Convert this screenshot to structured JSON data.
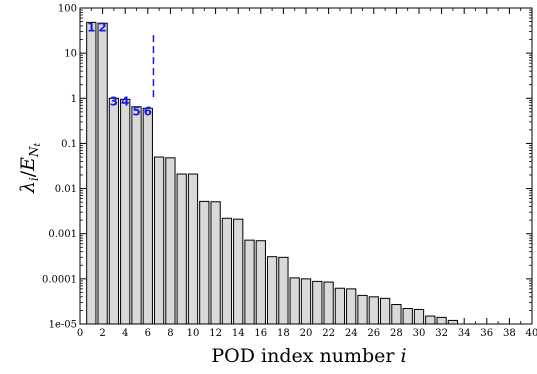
{
  "chart_data": {
    "type": "bar",
    "xlabel": "POD index number",
    "xlabel_var": "i",
    "ylabel_main": "λ",
    "ylabel_sub_i": "i",
    "ylabel_slash": "/",
    "ylabel_denom": "E",
    "ylabel_denom_sub": "N",
    "ylabel_denom_subsub": "t",
    "yscale": "log",
    "ylim": [
      1e-05,
      100
    ],
    "xlim": [
      0,
      40
    ],
    "y_ticks": [
      {
        "value": 100,
        "label": "100"
      },
      {
        "value": 10,
        "label": "10"
      },
      {
        "value": 1,
        "label": "1"
      },
      {
        "value": 0.1,
        "label": "0.1"
      },
      {
        "value": 0.01,
        "label": "0.01"
      },
      {
        "value": 0.001,
        "label": "0.001"
      },
      {
        "value": 0.0001,
        "label": "0.0001"
      },
      {
        "value": 1e-05,
        "label": "1e-05"
      }
    ],
    "x_ticks": [
      {
        "value": 0,
        "label": "0"
      },
      {
        "value": 2,
        "label": "2"
      },
      {
        "value": 4,
        "label": "4"
      },
      {
        "value": 6,
        "label": "6"
      },
      {
        "value": 8,
        "label": "8"
      },
      {
        "value": 10,
        "label": "10"
      },
      {
        "value": 12,
        "label": "12"
      },
      {
        "value": 14,
        "label": "14"
      },
      {
        "value": 16,
        "label": "16"
      },
      {
        "value": 18,
        "label": "18"
      },
      {
        "value": 20,
        "label": "20"
      },
      {
        "value": 22,
        "label": "22"
      },
      {
        "value": 24,
        "label": "24"
      },
      {
        "value": 26,
        "label": "26"
      },
      {
        "value": 28,
        "label": "28"
      },
      {
        "value": 30,
        "label": "30"
      },
      {
        "value": 32,
        "label": "32"
      },
      {
        "value": 34,
        "label": "34"
      },
      {
        "value": 36,
        "label": "36"
      },
      {
        "value": 38,
        "label": "38"
      },
      {
        "value": 40,
        "label": "40"
      }
    ],
    "bars": [
      {
        "x": 1,
        "value": 48
      },
      {
        "x": 2,
        "value": 46
      },
      {
        "x": 3,
        "value": 1.0
      },
      {
        "x": 4,
        "value": 0.95
      },
      {
        "x": 5,
        "value": 0.65
      },
      {
        "x": 6,
        "value": 0.6
      },
      {
        "x": 7,
        "value": 0.05
      },
      {
        "x": 8,
        "value": 0.048
      },
      {
        "x": 9,
        "value": 0.021
      },
      {
        "x": 10,
        "value": 0.021
      },
      {
        "x": 11,
        "value": 0.0052
      },
      {
        "x": 12,
        "value": 0.0051
      },
      {
        "x": 13,
        "value": 0.0022
      },
      {
        "x": 14,
        "value": 0.0021
      },
      {
        "x": 15,
        "value": 0.00072
      },
      {
        "x": 16,
        "value": 0.0007
      },
      {
        "x": 17,
        "value": 0.00031
      },
      {
        "x": 18,
        "value": 0.0003
      },
      {
        "x": 19,
        "value": 0.000105
      },
      {
        "x": 20,
        "value": 0.0001
      },
      {
        "x": 21,
        "value": 8.8e-05
      },
      {
        "x": 22,
        "value": 8.5e-05
      },
      {
        "x": 23,
        "value": 6.2e-05
      },
      {
        "x": 24,
        "value": 6e-05
      },
      {
        "x": 25,
        "value": 4.3e-05
      },
      {
        "x": 26,
        "value": 4e-05
      },
      {
        "x": 27,
        "value": 3.7e-05
      },
      {
        "x": 28,
        "value": 2.7e-05
      },
      {
        "x": 29,
        "value": 2.2e-05
      },
      {
        "x": 30,
        "value": 2.1e-05
      },
      {
        "x": 31,
        "value": 1.5e-05
      },
      {
        "x": 32,
        "value": 1.4e-05
      },
      {
        "x": 33,
        "value": 1.2e-05
      }
    ],
    "bar_color": "#d9d9d9",
    "annotations": [
      {
        "text": "1",
        "x": 1,
        "y": 30
      },
      {
        "text": "2",
        "x": 2,
        "y": 30
      },
      {
        "text": "3",
        "x": 3,
        "y": 0.7
      },
      {
        "text": "4",
        "x": 4,
        "y": 0.7
      },
      {
        "text": "5",
        "x": 5,
        "y": 0.42
      },
      {
        "text": "6",
        "x": 6,
        "y": 0.42
      }
    ],
    "annotation_color": "#1a1ae6",
    "divider": {
      "x": 6.5,
      "y_from": 1,
      "y_to": 25,
      "style": "dashed",
      "color": "#1a1ae6"
    }
  }
}
